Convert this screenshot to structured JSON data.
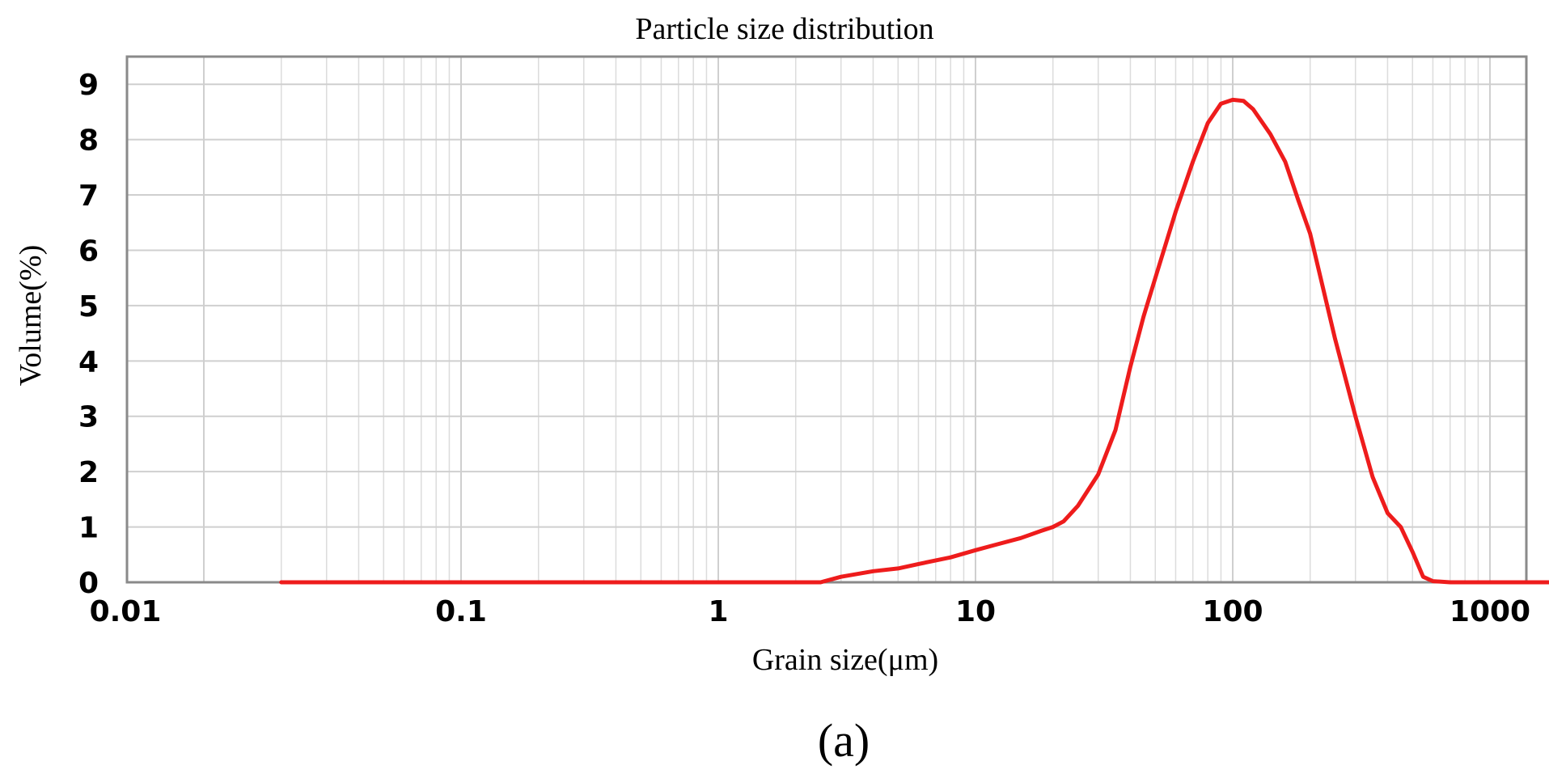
{
  "chart_data": {
    "type": "line",
    "title": "Particle size distribution",
    "xlabel": "Grain size(μm)",
    "ylabel": "Volume(%)",
    "xscale": "log",
    "xlim": [
      0.01,
      2000
    ],
    "ylim": [
      0,
      9.5
    ],
    "xticks": [
      0.01,
      0.1,
      1,
      10,
      100,
      1000
    ],
    "xtick_labels": [
      "0.01",
      "0.1",
      "1",
      "10",
      "100",
      "1000"
    ],
    "yticks": [
      0,
      1,
      2,
      3,
      4,
      5,
      6,
      7,
      8,
      9
    ],
    "ytick_labels": [
      "0",
      "1",
      "2",
      "3",
      "4",
      "5",
      "6",
      "7",
      "8",
      "9"
    ],
    "grid": true,
    "series_color": "#ee1c1c",
    "series": [
      {
        "x": [
          0.02,
          0.1,
          1,
          2.5,
          3,
          4,
          5,
          6,
          8,
          10,
          12,
          15,
          18,
          20,
          22,
          25,
          30,
          35,
          40,
          45,
          50,
          60,
          70,
          80,
          90,
          100,
          110,
          120,
          140,
          160,
          180,
          200,
          250,
          300,
          350,
          400,
          450,
          500,
          550,
          600,
          700,
          800,
          1000,
          1500,
          2000
        ],
        "y": [
          0,
          0,
          0,
          0,
          0.1,
          0.2,
          0.25,
          0.33,
          0.45,
          0.58,
          0.68,
          0.8,
          0.93,
          1.0,
          1.1,
          1.38,
          1.95,
          2.75,
          3.9,
          4.8,
          5.5,
          6.7,
          7.6,
          8.3,
          8.65,
          8.72,
          8.7,
          8.55,
          8.1,
          7.6,
          6.9,
          6.3,
          4.4,
          3.0,
          1.9,
          1.25,
          1.0,
          0.55,
          0.1,
          0.02,
          0,
          0,
          0,
          0,
          0
        ]
      }
    ]
  },
  "panel_label": "(a)"
}
